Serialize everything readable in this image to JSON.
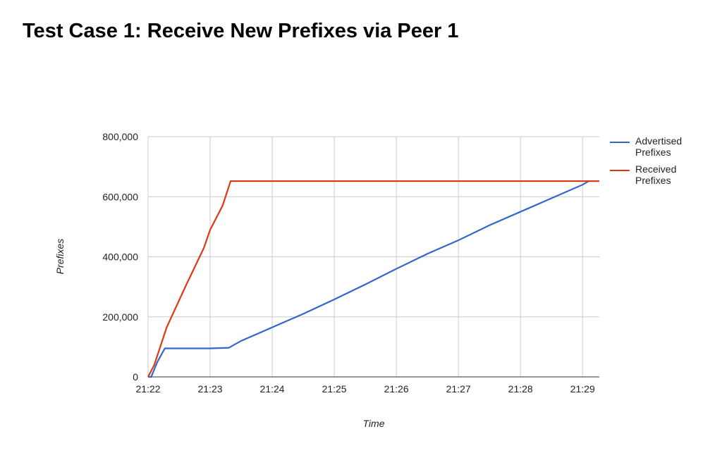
{
  "chart_data": {
    "type": "line",
    "title": "Test Case 1: Receive New Prefixes via Peer 1",
    "xlabel": "Time",
    "ylabel": "Prefixes",
    "xlim": [
      1282,
      1289.27
    ],
    "xticks": [
      {
        "value": 1282,
        "label": "21:22"
      },
      {
        "value": 1283,
        "label": "21:23"
      },
      {
        "value": 1284,
        "label": "21:24"
      },
      {
        "value": 1285,
        "label": "21:25"
      },
      {
        "value": 1286,
        "label": "21:26"
      },
      {
        "value": 1287,
        "label": "21:27"
      },
      {
        "value": 1288,
        "label": "21:28"
      },
      {
        "value": 1289,
        "label": "21:29"
      }
    ],
    "ylim": [
      0,
      800000
    ],
    "yticks": [
      0,
      {
        "value": 200000,
        "label": "200,000"
      },
      {
        "value": 400000,
        "label": "400,000"
      },
      {
        "value": 600000,
        "label": "600,000"
      },
      {
        "value": 800000,
        "label": "800,000"
      }
    ],
    "grid": true,
    "legend": "right",
    "series": [
      {
        "name": "Advertised Prefixes",
        "color": "#3366cc",
        "x": [
          1282.0,
          1282.05,
          1282.15,
          1282.27,
          1283.0,
          1283.3,
          1283.5,
          1284,
          1284.5,
          1285,
          1285.5,
          1286,
          1286.5,
          1287,
          1287.5,
          1288,
          1288.5,
          1289,
          1289.1,
          1289.27
        ],
        "values": [
          0,
          0,
          50000,
          95000,
          95000,
          97000,
          120000,
          165000,
          210000,
          258000,
          308000,
          360000,
          410000,
          455000,
          505000,
          550000,
          595000,
          640000,
          652000,
          652000
        ]
      },
      {
        "name": "Received Prefixes",
        "color": "#dc3912",
        "x": [
          1282.0,
          1282.1,
          1282.3,
          1282.6,
          1282.9,
          1283.0,
          1283.2,
          1283.33,
          1289.27
        ],
        "values": [
          0,
          40000,
          165000,
          300000,
          430000,
          490000,
          570000,
          652000,
          652000
        ]
      }
    ]
  }
}
